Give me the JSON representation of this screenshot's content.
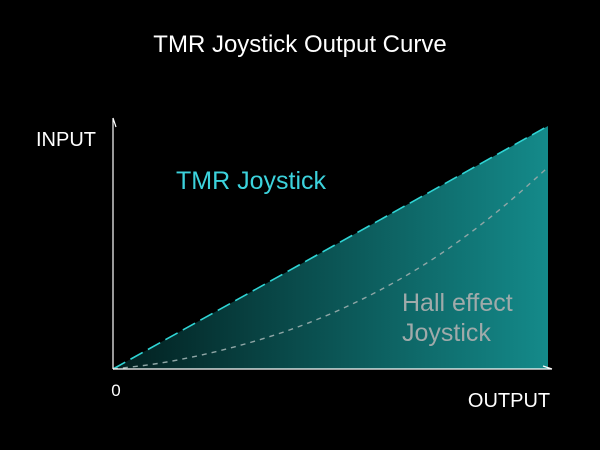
{
  "chart_data": {
    "type": "area",
    "title": "TMR Joystick Output Curve",
    "xlabel": "OUTPUT",
    "ylabel": "INPUT",
    "origin_label": "0",
    "xlim": [
      0,
      1
    ],
    "ylim": [
      0,
      1
    ],
    "grid": false,
    "series": [
      {
        "name": "TMR Joystick",
        "style": "filled-area-dashed-edge",
        "color": "#2fd4d4",
        "x": [
          0,
          1
        ],
        "y": [
          0,
          1
        ]
      },
      {
        "name": "Hall effect Joystick",
        "style": "dashed-curve",
        "color": "#8fa6a6",
        "x": [
          0,
          0.1,
          0.2,
          0.3,
          0.4,
          0.5,
          0.6,
          0.7,
          0.8,
          0.9,
          1.0
        ],
        "y": [
          0,
          0.02,
          0.055,
          0.1,
          0.155,
          0.225,
          0.31,
          0.41,
          0.53,
          0.67,
          0.83
        ]
      }
    ],
    "label_lines": {
      "tmr": [
        "TMR Joystick"
      ],
      "hall": [
        "Hall effect",
        "Joystick"
      ]
    },
    "colors": {
      "background": "#000000",
      "axis": "#ffffff",
      "area_dark": "#021e1e",
      "area_light": "#148a8a",
      "tmr_label": "#3cd2dc",
      "hall_label": "#a0aaaa"
    }
  }
}
